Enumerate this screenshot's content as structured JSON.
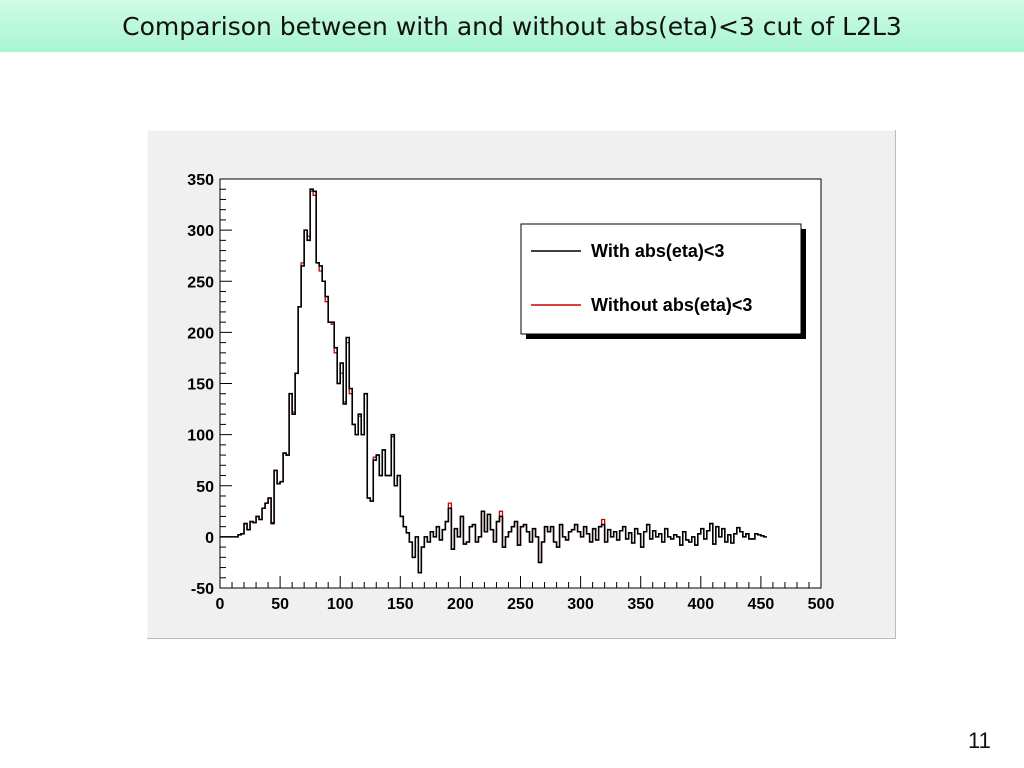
{
  "slide": {
    "title": "Comparison between with and without abs(eta)<3 cut of L2L3",
    "page_number": "11"
  },
  "chart_data": {
    "type": "histogram",
    "title": "",
    "xlabel": "",
    "ylabel": "",
    "xlim": [
      0,
      500
    ],
    "ylim": [
      -50,
      350
    ],
    "bin_width": 2.5,
    "x_ticks": [
      "0",
      "50",
      "100",
      "150",
      "200",
      "250",
      "300",
      "350",
      "400",
      "450",
      "500"
    ],
    "y_ticks": [
      "-50",
      "0",
      "50",
      "100",
      "150",
      "200",
      "250",
      "300",
      "350"
    ],
    "legend_position": "top-right",
    "colors": {
      "frame": "#000000",
      "background": "#ffffff",
      "canvas": "#f0f0f0"
    },
    "series": [
      {
        "name": "With abs(eta)<3",
        "color": "#000000",
        "values": [
          0,
          0,
          0,
          0,
          0,
          0,
          2,
          3,
          13,
          7,
          15,
          14,
          20,
          17,
          28,
          33,
          38,
          13,
          65,
          52,
          54,
          82,
          80,
          140,
          120,
          160,
          225,
          265,
          300,
          290,
          340,
          338,
          268,
          265,
          250,
          235,
          210,
          210,
          185,
          150,
          170,
          130,
          195,
          145,
          110,
          100,
          120,
          100,
          140,
          38,
          35,
          75,
          80,
          60,
          85,
          60,
          60,
          100,
          50,
          60,
          20,
          10,
          4,
          -5,
          -20,
          0,
          -35,
          -10,
          0,
          -5,
          5,
          0,
          10,
          -3,
          7,
          15,
          28,
          -12,
          8,
          0,
          20,
          -7,
          -5,
          10,
          12,
          -5,
          0,
          25,
          5,
          22,
          7,
          -5,
          15,
          20,
          -10,
          0,
          5,
          10,
          15,
          -8,
          10,
          12,
          5,
          -5,
          8,
          0,
          -25,
          -5,
          10,
          5,
          10,
          -5,
          -10,
          12,
          0,
          -3,
          5,
          7,
          12,
          5,
          0,
          10,
          3,
          -5,
          8,
          -3,
          10,
          12,
          -5,
          7,
          0,
          5,
          -3,
          6,
          10,
          -2,
          4,
          -6,
          8,
          3,
          -10,
          5,
          12,
          -2,
          6,
          0,
          3,
          -5,
          8,
          0,
          -2,
          2,
          0,
          -8,
          5,
          -3,
          -5,
          0,
          -8,
          3,
          8,
          -2,
          6,
          13,
          -7,
          10,
          0,
          8,
          -5,
          2,
          -6,
          3,
          9,
          5,
          0,
          3,
          -2,
          -2,
          3,
          2,
          1,
          0
        ],
        "marker_style": "step-black"
      },
      {
        "name": "Without abs(eta)<3",
        "color": "#cc0000",
        "values": [
          0,
          0,
          0,
          0,
          0,
          0,
          2,
          3,
          13,
          7,
          15,
          14,
          20,
          17,
          28,
          33,
          38,
          14,
          65,
          52,
          54,
          82,
          80,
          140,
          122,
          160,
          225,
          268,
          300,
          294,
          338,
          334,
          268,
          260,
          250,
          230,
          210,
          208,
          180,
          150,
          160,
          132,
          190,
          140,
          110,
          100,
          118,
          100,
          140,
          38,
          35,
          78,
          80,
          60,
          85,
          60,
          60,
          98,
          50,
          60,
          20,
          10,
          4,
          -5,
          -20,
          0,
          -35,
          -10,
          0,
          -5,
          5,
          0,
          10,
          -3,
          7,
          15,
          33,
          -12,
          8,
          0,
          20,
          -7,
          -5,
          10,
          12,
          -5,
          0,
          25,
          5,
          22,
          7,
          -5,
          15,
          25,
          -10,
          0,
          5,
          10,
          15,
          -8,
          10,
          12,
          5,
          -5,
          8,
          0,
          -25,
          -5,
          10,
          5,
          10,
          -5,
          -10,
          12,
          0,
          -3,
          5,
          7,
          12,
          5,
          0,
          10,
          3,
          -5,
          8,
          -3,
          10,
          17,
          -5,
          7,
          0,
          5,
          -3,
          6,
          10,
          -2,
          4,
          -6,
          8,
          3,
          -10,
          5,
          12,
          -2,
          6,
          0,
          3,
          -5,
          8,
          0,
          -2,
          2,
          0,
          -8,
          5,
          -3,
          -5,
          0,
          -8,
          3,
          8,
          -2,
          6,
          13,
          -7,
          10,
          0,
          8,
          -5,
          2,
          -6,
          3,
          9,
          5,
          0,
          3,
          -2,
          -2,
          3,
          2,
          1,
          0
        ],
        "marker_style": "step-red"
      }
    ]
  }
}
